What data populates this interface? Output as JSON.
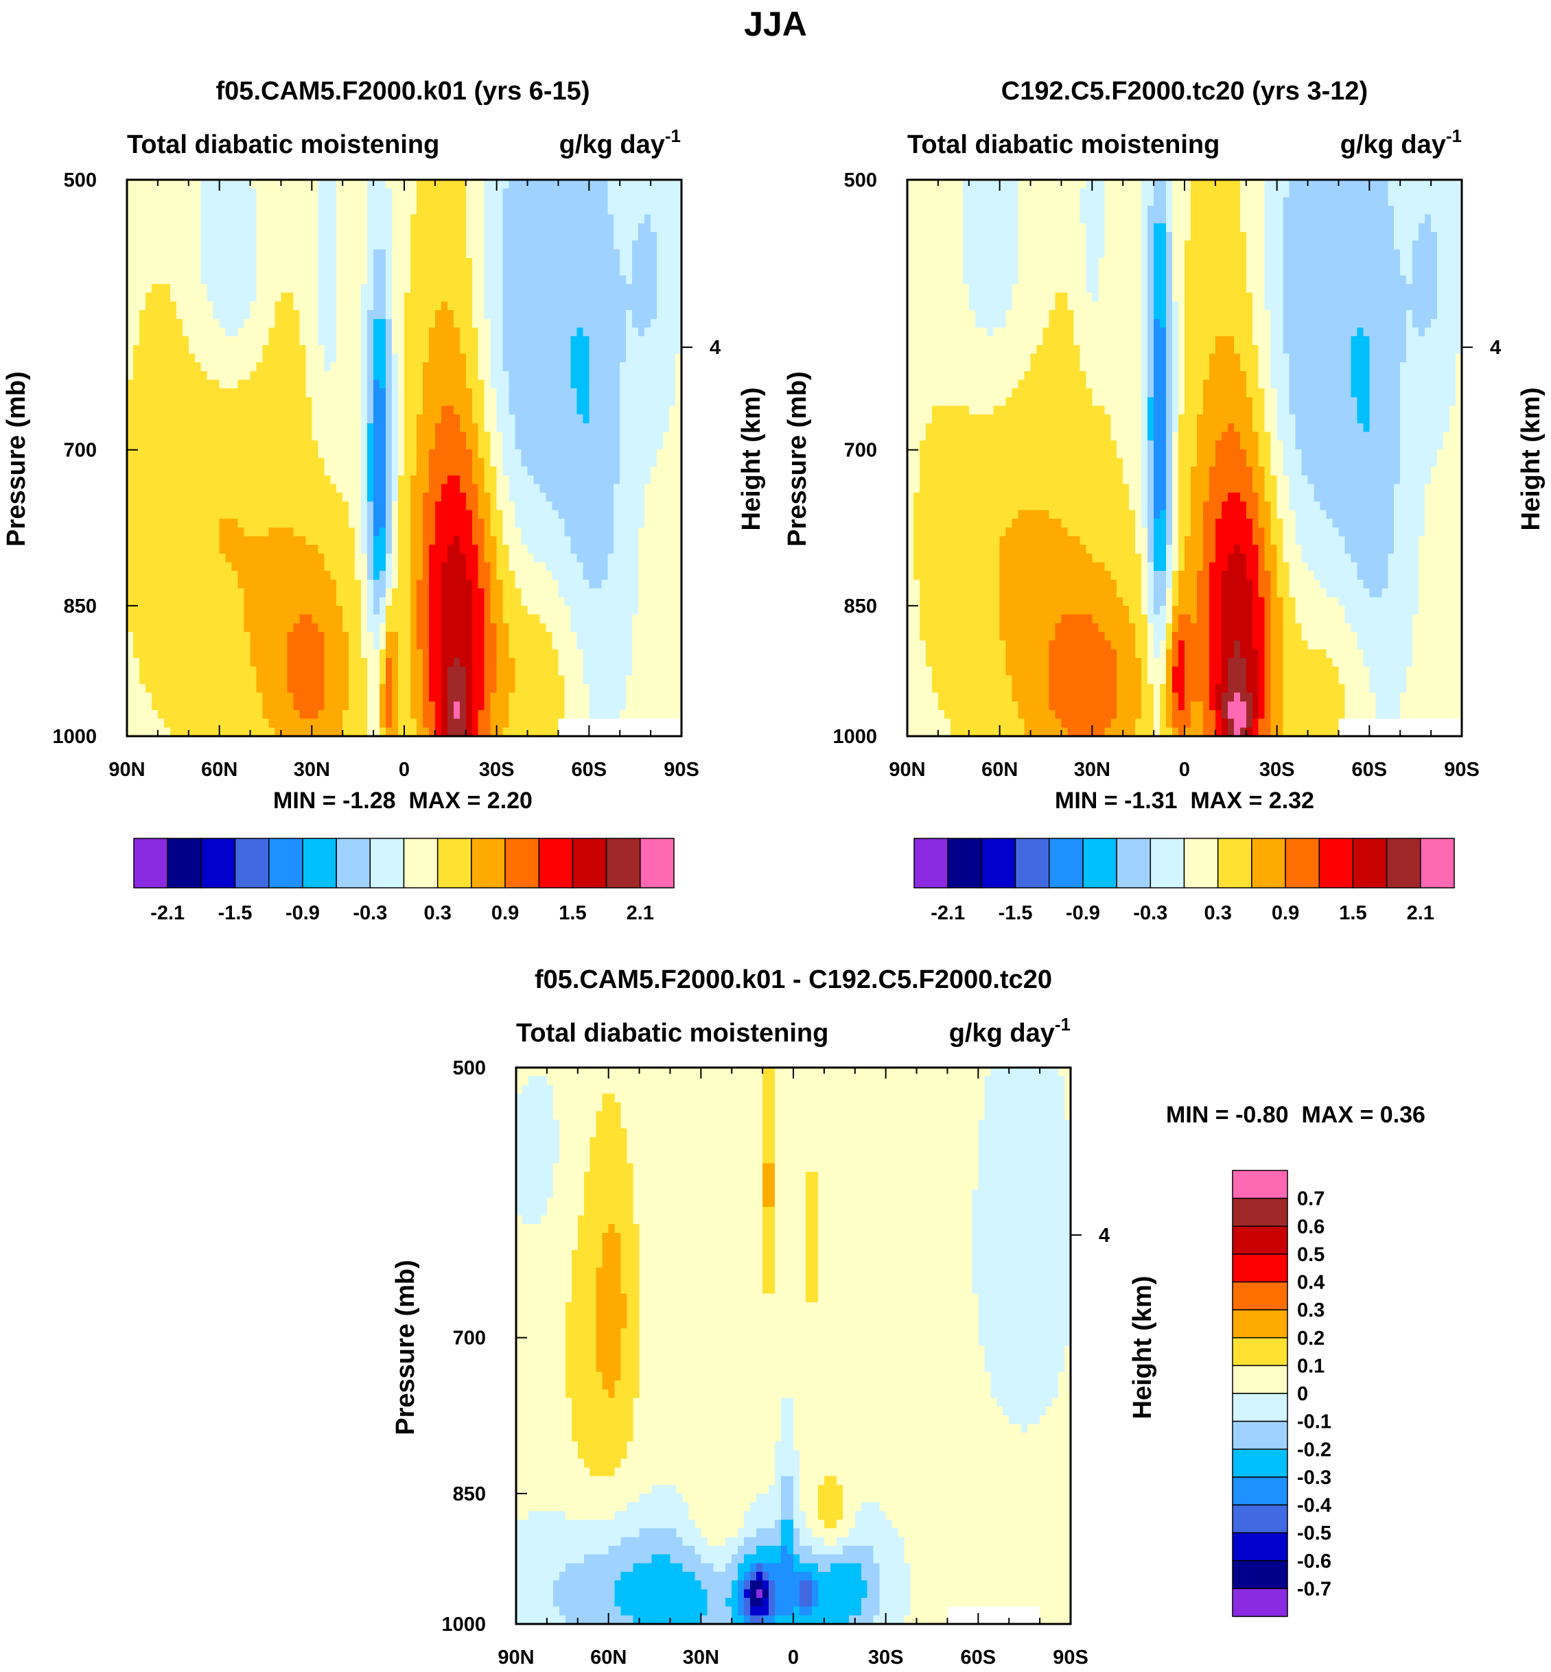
{
  "figure": {
    "title": "JJA",
    "min_label": "MIN =",
    "max_label": "MAX =",
    "x_ticks": [
      "90N",
      "60N",
      "30N",
      "0",
      "30S",
      "60S",
      "90S"
    ],
    "y_ticks": [
      "500",
      "700",
      "850",
      "1000"
    ],
    "height_tick": "4"
  },
  "chart_data": [
    {
      "type": "heatmap",
      "panel": "model-1",
      "title": "f05.CAM5.F2000.k01 (yrs 6-15)",
      "left_label": "Total diabatic moistening",
      "right_label": "g/kg day",
      "right_label_exp": "-1",
      "xlabel": "",
      "ylabel": "Pressure (mb)",
      "y2label": "Height (km)",
      "x_ticks": [
        "90N",
        "60N",
        "30N",
        "0",
        "30S",
        "60S",
        "90S"
      ],
      "x_range": [
        90,
        -90
      ],
      "y_ticks": [
        500,
        700,
        850,
        1000
      ],
      "y_range": [
        500,
        1000
      ],
      "min": "-1.28",
      "max": "2.20",
      "levels": [
        -2.1,
        -1.8,
        -1.5,
        -1.2,
        -0.9,
        -0.6,
        -0.3,
        0,
        0.3,
        0.6,
        0.9,
        1.2,
        1.5,
        1.8,
        2.1
      ],
      "colorbar_labels": [
        "-2.1",
        "-1.5",
        "-0.9",
        "-0.3",
        "0.3",
        "0.9",
        "1.5",
        "2.1"
      ],
      "colorbar_orientation": "horizontal",
      "field": {
        "background": 0.1,
        "features": [
          {
            "lat": 60,
            "lev": 550,
            "sx": 8,
            "sy": 70,
            "amp": -0.5
          },
          {
            "lat": 52,
            "lev": 560,
            "sx": 5,
            "sy": 50,
            "amp": -0.3
          },
          {
            "lat": 25,
            "lev": 560,
            "sx": 3,
            "sy": 80,
            "amp": -0.4
          },
          {
            "lat": -40,
            "lev": 600,
            "sx": 14,
            "sy": 140,
            "amp": -0.7
          },
          {
            "lat": -62,
            "lev": 700,
            "sx": 8,
            "sy": 200,
            "amp": -0.5
          },
          {
            "lat": -80,
            "lev": 560,
            "sx": 6,
            "sy": 80,
            "amp": -0.4
          },
          {
            "lat": 8,
            "lev": 720,
            "sx": 3,
            "sy": 120,
            "amp": -1.4
          },
          {
            "lat": 60,
            "lev": 760,
            "sx": 24,
            "sy": 200,
            "amp": 0.5
          },
          {
            "lat": -15,
            "lev": 760,
            "sx": 10,
            "sy": 260,
            "amp": 0.6
          },
          {
            "lat": 30,
            "lev": 930,
            "sx": 11,
            "sy": 100,
            "amp": 0.75
          },
          {
            "lat": 5,
            "lev": 940,
            "sx": 2,
            "sy": 70,
            "amp": 0.9
          },
          {
            "lat": -18,
            "lev": 880,
            "sx": 10,
            "sy": 150,
            "amp": 1.1
          },
          {
            "lat": -17,
            "lev": 980,
            "sx": 4,
            "sy": 40,
            "amp": 0.7
          },
          {
            "lat": -45,
            "lev": 930,
            "sx": 10,
            "sy": 80,
            "amp": 0.4
          }
        ],
        "missing_box": {
          "lat_from": -50,
          "lat_to": -90,
          "lev_from": 975,
          "lev_to": 1000
        }
      }
    },
    {
      "type": "heatmap",
      "panel": "model-2",
      "title": "C192.C5.F2000.tc20 (yrs 3-12)",
      "left_label": "Total diabatic moistening",
      "right_label": "g/kg day",
      "right_label_exp": "-1",
      "xlabel": "",
      "ylabel": "Pressure (mb)",
      "y2label": "Height (km)",
      "x_ticks": [
        "90N",
        "60N",
        "30N",
        "0",
        "30S",
        "60S",
        "90S"
      ],
      "x_range": [
        90,
        -90
      ],
      "y_ticks": [
        500,
        700,
        850,
        1000
      ],
      "y_range": [
        500,
        1000
      ],
      "min": "-1.31",
      "max": "2.32",
      "levels": [
        -2.1,
        -1.8,
        -1.5,
        -1.2,
        -0.9,
        -0.6,
        -0.3,
        0,
        0.3,
        0.6,
        0.9,
        1.2,
        1.5,
        1.8,
        2.1
      ],
      "colorbar_labels": [
        "-2.1",
        "-1.5",
        "-0.9",
        "-0.3",
        "0.3",
        "0.9",
        "1.5",
        "2.1"
      ],
      "colorbar_orientation": "horizontal",
      "field": {
        "background": 0.1,
        "features": [
          {
            "lat": 62,
            "lev": 560,
            "sx": 10,
            "sy": 80,
            "amp": -0.5
          },
          {
            "lat": 30,
            "lev": 530,
            "sx": 3,
            "sy": 60,
            "amp": -0.4
          },
          {
            "lat": -40,
            "lev": 600,
            "sx": 14,
            "sy": 150,
            "amp": -0.7
          },
          {
            "lat": -62,
            "lev": 700,
            "sx": 8,
            "sy": 200,
            "amp": -0.5
          },
          {
            "lat": -80,
            "lev": 560,
            "sx": 6,
            "sy": 80,
            "amp": -0.4
          },
          {
            "lat": 8,
            "lev": 690,
            "sx": 3,
            "sy": 160,
            "amp": -1.4
          },
          {
            "lat": 55,
            "lev": 780,
            "sx": 24,
            "sy": 200,
            "amp": 0.5
          },
          {
            "lat": -15,
            "lev": 770,
            "sx": 12,
            "sy": 250,
            "amp": 0.6
          },
          {
            "lat": 30,
            "lev": 945,
            "sx": 14,
            "sy": 90,
            "amp": 0.8
          },
          {
            "lat": 2,
            "lev": 930,
            "sx": 3,
            "sy": 60,
            "amp": 0.9
          },
          {
            "lat": -18,
            "lev": 890,
            "sx": 9,
            "sy": 140,
            "amp": 1.15
          },
          {
            "lat": -17,
            "lev": 985,
            "sx": 4,
            "sy": 40,
            "amp": 0.8
          },
          {
            "lat": -48,
            "lev": 940,
            "sx": 10,
            "sy": 70,
            "amp": 0.35
          }
        ],
        "missing_box": {
          "lat_from": -50,
          "lat_to": -90,
          "lev_from": 975,
          "lev_to": 1000
        }
      }
    },
    {
      "type": "heatmap",
      "panel": "difference",
      "title": "f05.CAM5.F2000.k01 - C192.C5.F2000.tc20",
      "left_label": "Total diabatic moistening",
      "right_label": "g/kg day",
      "right_label_exp": "-1",
      "xlabel": "",
      "ylabel": "Pressure (mb)",
      "y2label": "Height (km)",
      "x_ticks": [
        "90N",
        "60N",
        "30N",
        "0",
        "30S",
        "60S",
        "90S"
      ],
      "x_range": [
        90,
        -90
      ],
      "y_ticks": [
        500,
        700,
        850,
        1000
      ],
      "y_range": [
        500,
        1000
      ],
      "min": "-0.80",
      "max": "0.36",
      "levels": [
        -0.7,
        -0.6,
        -0.5,
        -0.4,
        -0.3,
        -0.2,
        -0.1,
        0,
        0.1,
        0.2,
        0.3,
        0.4,
        0.5,
        0.6,
        0.7
      ],
      "colorbar_labels": [
        "0.7",
        "0.6",
        "0.5",
        "0.4",
        "0.3",
        "0.2",
        "0.1",
        "0",
        "-0.1",
        "-0.2",
        "-0.3",
        "-0.4",
        "-0.5",
        "-0.6",
        "-0.7"
      ],
      "colorbar_orientation": "vertical",
      "field": {
        "background": 0.03,
        "features": [
          {
            "lat": 62,
            "lev": 680,
            "sx": 9,
            "sy": 140,
            "amp": 0.17
          },
          {
            "lat": 58,
            "lev": 670,
            "sx": 3,
            "sy": 60,
            "amp": 0.08
          },
          {
            "lat": 8,
            "lev": 580,
            "sx": 2,
            "sy": 60,
            "amp": 0.2
          },
          {
            "lat": -6,
            "lev": 620,
            "sx": 2,
            "sy": 70,
            "amp": 0.1
          },
          {
            "lat": 25,
            "lev": 890,
            "sx": 7,
            "sy": 50,
            "amp": 0.16
          },
          {
            "lat": -12,
            "lev": 880,
            "sx": 5,
            "sy": 35,
            "amp": 0.22
          },
          {
            "lat": 78,
            "lev": 560,
            "sx": 12,
            "sy": 60,
            "amp": -0.06
          },
          {
            "lat": -75,
            "lev": 620,
            "sx": 14,
            "sy": 140,
            "amp": -0.06
          },
          {
            "lat": 40,
            "lev": 960,
            "sx": 30,
            "sy": 60,
            "amp": -0.3
          },
          {
            "lat": 10,
            "lev": 965,
            "sx": 5,
            "sy": 40,
            "amp": -0.28
          },
          {
            "lat": -15,
            "lev": 955,
            "sx": 10,
            "sy": 50,
            "amp": -0.28
          },
          {
            "lat": 12,
            "lev": 965,
            "sx": 3,
            "sy": 20,
            "amp": -0.3
          },
          {
            "lat": -4,
            "lev": 960,
            "sx": 2,
            "sy": 18,
            "amp": -0.3
          },
          {
            "lat": 2,
            "lev": 900,
            "sx": 2,
            "sy": 80,
            "amp": -0.18
          }
        ],
        "missing_box": {
          "lat_from": -50,
          "lat_to": -80,
          "lev_from": 975,
          "lev_to": 1000
        }
      }
    }
  ],
  "colors": {
    "ncl_palette": [
      "#8a2be2",
      "#00008b",
      "#0000cd",
      "#4169e1",
      "#1e90ff",
      "#00bfff",
      "#a0d2ff",
      "#d2f5ff",
      "#ffffc8",
      "#ffe132",
      "#ffaa00",
      "#ff6e00",
      "#ff0000",
      "#c80000",
      "#a02828",
      "#ff69b4"
    ]
  }
}
